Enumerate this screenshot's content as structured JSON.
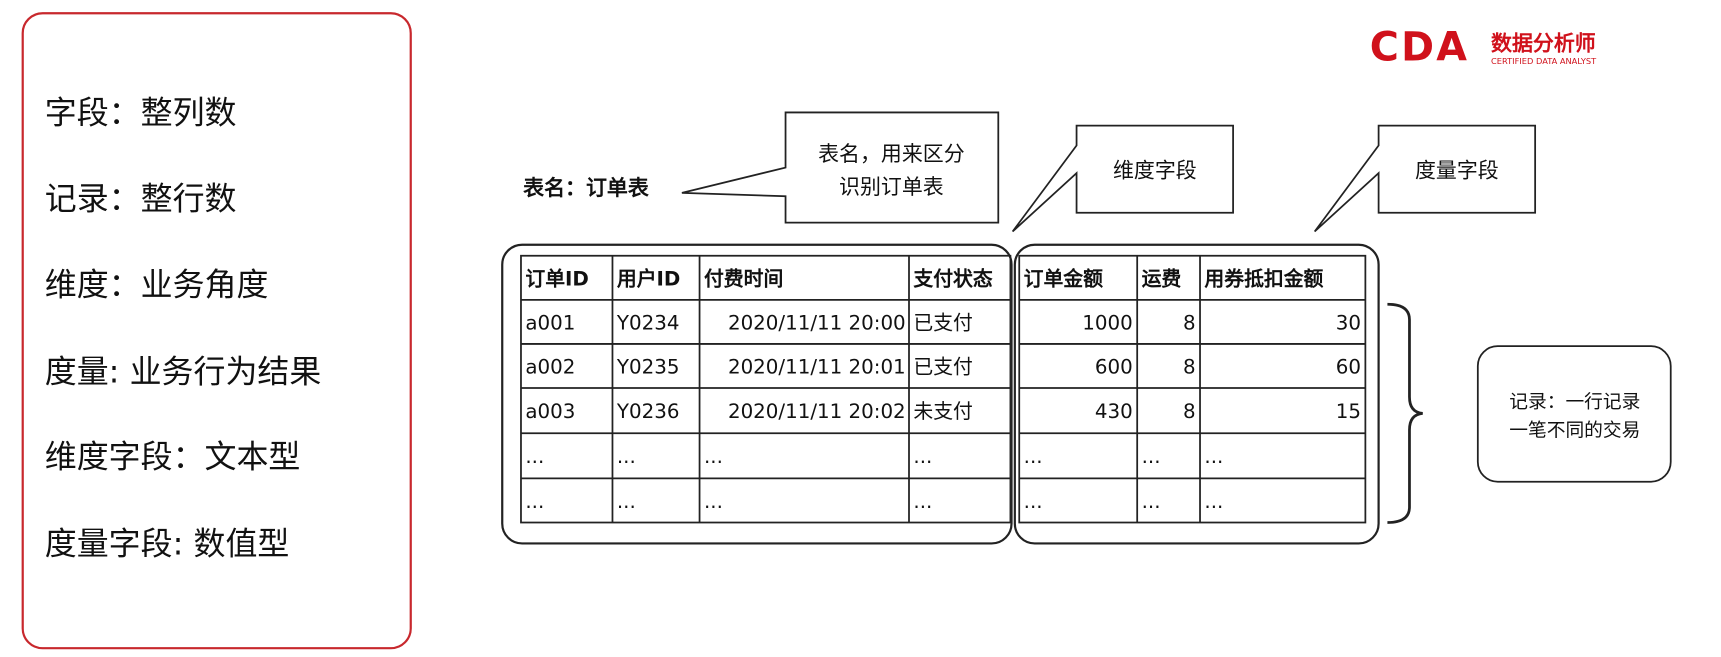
{
  "logo": {
    "mark": "CDA",
    "cn": "数据分析师",
    "en": "CERTIFIED DATA ANALYST",
    "color": "#d0111b"
  },
  "accent_color": "#c8282d",
  "definitions": [
    "字段：整列数",
    "记录：整行数",
    "维度：业务角度",
    "度量: 业务行为结果",
    "维度字段：文本型",
    "度量字段: 数值型"
  ],
  "table_title": "表名：订单表",
  "callouts": {
    "table_name": [
      "表名，用来区分",
      "识别订单表"
    ],
    "dimension": "维度字段",
    "measure": "度量字段",
    "record": [
      "记录：一行记录",
      "一笔不同的交易"
    ]
  },
  "table": {
    "headers": [
      "订单ID",
      "用户ID",
      "付费时间",
      "支付状态",
      "订单金额",
      "运费",
      "用券抵扣金额"
    ],
    "rows": [
      [
        "a001",
        "Y0234",
        "2020/11/11 20:00",
        "已支付",
        "1000",
        "8",
        "30"
      ],
      [
        "a002",
        "Y0235",
        "2020/11/11 20:01",
        "已支付",
        "600",
        "8",
        "60"
      ],
      [
        "a003",
        "Y0236",
        "2020/11/11 20:02",
        "未支付",
        "430",
        "8",
        "15"
      ],
      [
        "...",
        "...",
        "...",
        "...",
        "...",
        "...",
        "..."
      ],
      [
        "...",
        "...",
        "...",
        "...",
        "...",
        "...",
        "..."
      ]
    ]
  }
}
